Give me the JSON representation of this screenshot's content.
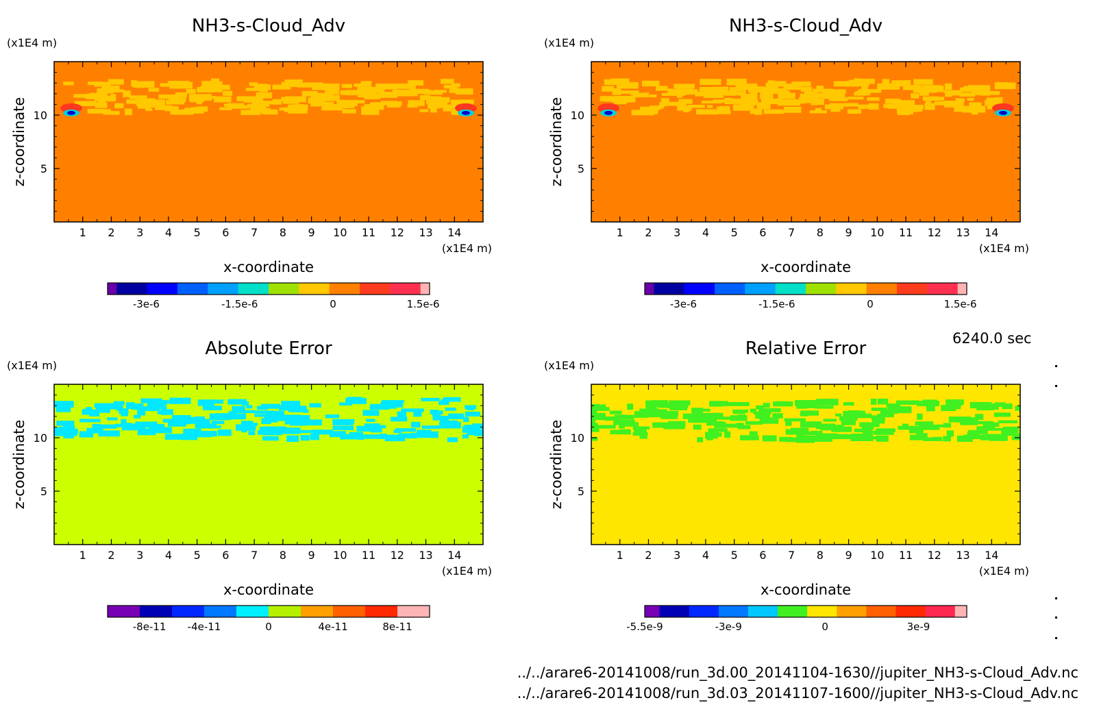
{
  "chart_data": [
    {
      "type": "heatmap",
      "title": "NH3-s-Cloud_Adv",
      "xlabel": "x-coordinate",
      "ylabel": "z-coordinate",
      "x_unit": "(x1E4 m)",
      "y_unit": "(x1E4 m)",
      "xlim": [
        0,
        15
      ],
      "ylim": [
        0,
        15
      ],
      "x_ticks": [
        "1",
        "2",
        "3",
        "4",
        "5",
        "6",
        "7",
        "8",
        "9",
        "10",
        "11",
        "12",
        "13",
        "14"
      ],
      "y_ticks": [
        "5",
        "10"
      ],
      "field": {
        "background": "#ff8000",
        "patch": "#ffc800",
        "positive_peak": "#ff3820",
        "negative_core": "#0000c8",
        "negative_ring": "#00d0e0",
        "band_z": [
          10.2,
          13.2
        ],
        "patch_centers_x": [
          1.2,
          2.6,
          3.9,
          5.2,
          6.7,
          8.0,
          9.2,
          10.8,
          12.3,
          13.8
        ],
        "peaks_x": [
          0.6,
          14.4
        ],
        "peak_z": 10.2
      },
      "colorbar": {
        "colors": [
          "#6a00a8",
          "#0000a0",
          "#0000ff",
          "#0060ff",
          "#00a0ff",
          "#00e0c8",
          "#a0e000",
          "#ffc800",
          "#ff8000",
          "#ff3c1e",
          "#ff3050",
          "#ffb4b4"
        ],
        "weights": [
          0.3,
          1,
          1,
          1,
          1,
          1,
          1,
          1,
          1,
          1,
          1,
          0.3
        ],
        "labels": [
          "-3e-6",
          "-1.5e-6",
          "0",
          "1.5e-6"
        ],
        "label_positions": [
          0.12,
          0.41,
          0.7,
          0.98
        ]
      }
    },
    {
      "type": "heatmap",
      "title": "NH3-s-Cloud_Adv",
      "xlabel": "x-coordinate",
      "ylabel": "z-coordinate",
      "x_unit": "(x1E4 m)",
      "y_unit": "(x1E4 m)",
      "xlim": [
        0,
        15
      ],
      "ylim": [
        0,
        15
      ],
      "x_ticks": [
        "1",
        "2",
        "3",
        "4",
        "5",
        "6",
        "7",
        "8",
        "9",
        "10",
        "11",
        "12",
        "13",
        "14"
      ],
      "y_ticks": [
        "5",
        "10"
      ],
      "field": {
        "background": "#ff8000",
        "patch": "#ffc800",
        "positive_peak": "#ff3820",
        "negative_core": "#0000c8",
        "negative_ring": "#00d0e0",
        "band_z": [
          10.2,
          13.2
        ],
        "patch_centers_x": [
          1.2,
          2.6,
          3.9,
          5.2,
          6.7,
          8.0,
          9.2,
          10.8,
          12.3,
          13.8
        ],
        "peaks_x": [
          0.6,
          14.4
        ],
        "peak_z": 10.2
      },
      "colorbar": {
        "colors": [
          "#6a00a8",
          "#0000a0",
          "#0000ff",
          "#0060ff",
          "#00a0ff",
          "#00e0c8",
          "#a0e000",
          "#ffc800",
          "#ff8000",
          "#ff3c1e",
          "#ff3050",
          "#ffb4b4"
        ],
        "weights": [
          0.3,
          1,
          1,
          1,
          1,
          1,
          1,
          1,
          1,
          1,
          1,
          0.3
        ],
        "labels": [
          "-3e-6",
          "-1.5e-6",
          "0",
          "1.5e-6"
        ],
        "label_positions": [
          0.12,
          0.41,
          0.7,
          0.98
        ]
      }
    },
    {
      "type": "heatmap",
      "title": "Absolute Error",
      "xlabel": "x-coordinate",
      "ylabel": "z-coordinate",
      "x_unit": "(x1E4 m)",
      "y_unit": "(x1E4 m)",
      "xlim": [
        0,
        15
      ],
      "ylim": [
        0,
        15
      ],
      "x_ticks": [
        "1",
        "2",
        "3",
        "4",
        "5",
        "6",
        "7",
        "8",
        "9",
        "10",
        "11",
        "12",
        "13",
        "14"
      ],
      "y_ticks": [
        "5",
        "10"
      ],
      "field": {
        "background": "#ccff00",
        "patch": "#00e8ff",
        "band_z": [
          9.8,
          13.6
        ],
        "patch_centers_x": [
          0.8,
          2.0,
          3.4,
          4.8,
          6.2,
          7.6,
          8.8,
          10.4,
          11.8,
          13.2,
          14.5
        ]
      },
      "colorbar": {
        "colors": [
          "#7800b4",
          "#0000b4",
          "#0028ff",
          "#0078ff",
          "#00f0ff",
          "#b4f000",
          "#ffa000",
          "#ff6000",
          "#ff2800",
          "#ffb4b4"
        ],
        "weights": [
          1,
          1,
          1,
          1,
          1,
          1,
          1,
          1,
          1,
          1
        ],
        "labels": [
          "-8e-11",
          "-4e-11",
          "0",
          "4e-11",
          "8e-11"
        ],
        "label_positions": [
          0.13,
          0.3,
          0.5,
          0.7,
          0.9
        ]
      }
    },
    {
      "type": "heatmap",
      "title": "Relative Error",
      "xlabel": "x-coordinate",
      "ylabel": "z-coordinate",
      "x_unit": "(x1E4 m)",
      "y_unit": "(x1E4 m)",
      "xlim": [
        0,
        15
      ],
      "ylim": [
        0,
        15
      ],
      "x_ticks": [
        "1",
        "2",
        "3",
        "4",
        "5",
        "6",
        "7",
        "8",
        "9",
        "10",
        "11",
        "12",
        "13",
        "14"
      ],
      "y_ticks": [
        "5",
        "10"
      ],
      "field": {
        "background": "#ffe600",
        "patch": "#40f020",
        "band_z": [
          9.8,
          13.4
        ],
        "patch_centers_x": [
          0.6,
          1.8,
          3.2,
          4.4,
          5.8,
          6.9,
          8.1,
          9.3,
          10.7,
          12.1,
          13.4,
          14.6
        ]
      },
      "colorbar": {
        "colors": [
          "#7800b4",
          "#0000b4",
          "#0028ff",
          "#0078ff",
          "#00c8ff",
          "#40f020",
          "#ffe600",
          "#ffa000",
          "#ff6000",
          "#ff2800",
          "#ff2850",
          "#ffb4b4"
        ],
        "weights": [
          0.5,
          1,
          1,
          1,
          1,
          1,
          1,
          1,
          1,
          1,
          1,
          0.4
        ],
        "labels": [
          "-5.5e-9",
          "-3e-9",
          "0",
          "3e-9"
        ],
        "label_positions": [
          0.0,
          0.26,
          0.56,
          0.85
        ]
      }
    }
  ],
  "time_label": "6240.0 sec",
  "file_paths": [
    "../../arare6-20141008/run_3d.00_20141104-1630//jupiter_NH3-s-Cloud_Adv.nc",
    "../../arare6-20141008/run_3d.03_20141107-1600//jupiter_NH3-s-Cloud_Adv.nc"
  ]
}
